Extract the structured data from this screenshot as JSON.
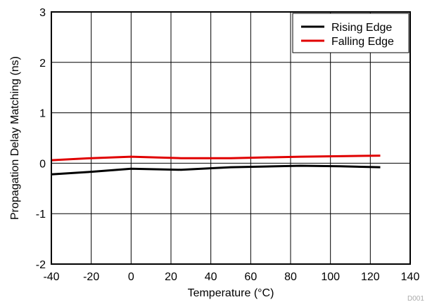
{
  "chart_data": {
    "type": "line",
    "title": "",
    "xlabel": "Temperature (°C)",
    "ylabel": "Propagation Delay Matching (ns)",
    "xlim": [
      -40,
      140
    ],
    "ylim": [
      -2,
      3
    ],
    "x_ticks": [
      -40,
      -20,
      0,
      20,
      40,
      60,
      80,
      100,
      120,
      140
    ],
    "y_ticks": [
      -2,
      -1,
      0,
      1,
      2,
      3
    ],
    "grid": true,
    "legend_position": "top-right",
    "series": [
      {
        "name": "Rising Edge",
        "color": "#000000",
        "x": [
          -40,
          -20,
          0,
          25,
          50,
          85,
          105,
          125
        ],
        "y": [
          -0.22,
          -0.17,
          -0.11,
          -0.13,
          -0.08,
          -0.05,
          -0.06,
          -0.08
        ]
      },
      {
        "name": "Falling Edge",
        "color": "#e00000",
        "x": [
          -40,
          -20,
          0,
          25,
          50,
          85,
          105,
          125
        ],
        "y": [
          0.06,
          0.1,
          0.13,
          0.1,
          0.1,
          0.13,
          0.14,
          0.15
        ]
      }
    ]
  },
  "figure_code": "D001"
}
